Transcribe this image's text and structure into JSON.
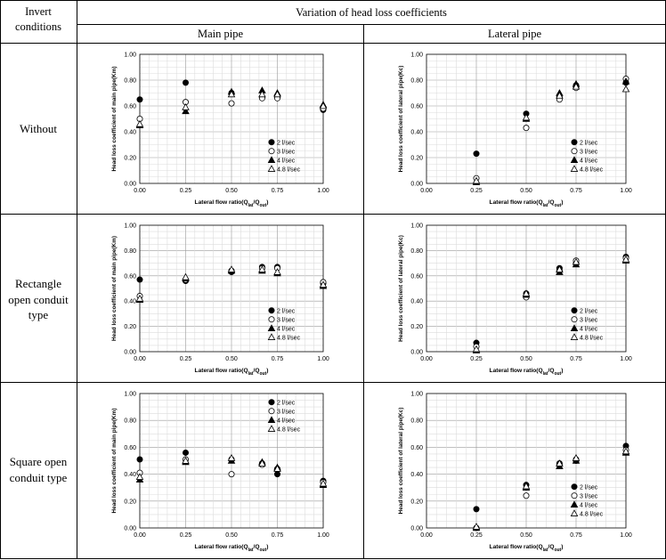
{
  "header": {
    "invert_line1": "Invert",
    "invert_line2": "conditions",
    "variation": "Variation of head loss coefficients",
    "main_pipe": "Main pipe",
    "lateral_pipe": "Lateral pipe"
  },
  "rows": [
    {
      "label_lines": [
        "Without"
      ]
    },
    {
      "label_lines": [
        "Rectangle",
        "open conduit",
        "type"
      ]
    },
    {
      "label_lines": [
        "Square open",
        "conduit type"
      ]
    }
  ],
  "chart_data": [
    {
      "type": "scatter",
      "id": "without-main",
      "ylabel": "Head loss coefficient of main pipe(Km)",
      "xlabel": "Lateral flow ratio(Qlat/Qout)",
      "xlim": [
        0,
        1
      ],
      "ylim": [
        0,
        1
      ],
      "xticks": [
        "0.00",
        "0.25",
        "0.50",
        "0.75",
        "1.00"
      ],
      "yticks": [
        "0.00",
        "0.20",
        "0.40",
        "0.60",
        "0.80",
        "1.00"
      ],
      "grid": true,
      "legend": "bottom-right",
      "series": [
        {
          "name": "2 l/sec",
          "marker": "filled-circle",
          "points": [
            [
              0,
              0.65
            ],
            [
              0.25,
              0.78
            ],
            [
              0.5,
              0.7
            ],
            [
              0.667,
              0.67
            ],
            [
              0.75,
              0.67
            ],
            [
              1.0,
              0.57
            ]
          ]
        },
        {
          "name": "3 l/sec",
          "marker": "open-circle",
          "points": [
            [
              0,
              0.5
            ],
            [
              0.25,
              0.63
            ],
            [
              0.5,
              0.62
            ],
            [
              0.667,
              0.66
            ],
            [
              0.75,
              0.66
            ],
            [
              1.0,
              0.58
            ]
          ]
        },
        {
          "name": "4 l/sec",
          "marker": "filled-triangle",
          "points": [
            [
              0,
              0.45
            ],
            [
              0.25,
              0.56
            ],
            [
              0.5,
              0.71
            ],
            [
              0.667,
              0.72
            ],
            [
              0.75,
              0.7
            ],
            [
              1.0,
              0.61
            ]
          ]
        },
        {
          "name": "4.8 l/sec",
          "marker": "open-triangle",
          "points": [
            [
              0,
              0.46
            ],
            [
              0.25,
              0.59
            ],
            [
              0.5,
              0.69
            ],
            [
              0.667,
              0.69
            ],
            [
              0.75,
              0.69
            ],
            [
              1.0,
              0.6
            ]
          ]
        }
      ]
    },
    {
      "type": "scatter",
      "id": "without-lateral",
      "ylabel": "Head loss coefficient of lateral pipe(Kc)",
      "xlabel": "Lateral flow ratio(Qlat/Qout)",
      "xlim": [
        0,
        1
      ],
      "ylim": [
        0,
        1
      ],
      "xticks": [
        "0.00",
        "0.25",
        "0.50",
        "0.75",
        "1.00"
      ],
      "yticks": [
        "0.00",
        "0.20",
        "0.40",
        "0.60",
        "0.80",
        "1.00"
      ],
      "grid": true,
      "legend": "bottom-right",
      "series": [
        {
          "name": "2 l/sec",
          "marker": "filled-circle",
          "points": [
            [
              0.25,
              0.23
            ],
            [
              0.5,
              0.54
            ],
            [
              0.667,
              0.67
            ],
            [
              0.75,
              0.76
            ],
            [
              1.0,
              0.78
            ]
          ]
        },
        {
          "name": "3 l/sec",
          "marker": "open-circle",
          "points": [
            [
              0.25,
              0.04
            ],
            [
              0.5,
              0.43
            ],
            [
              0.667,
              0.65
            ],
            [
              0.75,
              0.74
            ],
            [
              1.0,
              0.81
            ]
          ]
        },
        {
          "name": "4 l/sec",
          "marker": "filled-triangle",
          "points": [
            [
              0.25,
              0.01
            ],
            [
              0.5,
              0.5
            ],
            [
              0.667,
              0.7
            ],
            [
              0.75,
              0.77
            ],
            [
              1.0,
              0.79
            ]
          ]
        },
        {
          "name": "4.8 l/sec",
          "marker": "open-triangle",
          "points": [
            [
              0.25,
              0.02
            ],
            [
              0.5,
              0.51
            ],
            [
              0.667,
              0.68
            ],
            [
              0.75,
              0.75
            ],
            [
              1.0,
              0.73
            ]
          ]
        }
      ]
    },
    {
      "type": "scatter",
      "id": "rectangle-main",
      "ylabel": "Head loss coefficient of main pipe(Km)",
      "xlabel": "Lateral flow ratio(Qlat/Qout)",
      "xlim": [
        0,
        1
      ],
      "ylim": [
        0,
        1
      ],
      "xticks": [
        "0.00",
        "0.25",
        "0.50",
        "0.75",
        "1.00"
      ],
      "yticks": [
        "0.00",
        "0.20",
        "0.40",
        "0.60",
        "0.80",
        "1.00"
      ],
      "grid": true,
      "legend": "bottom-right",
      "series": [
        {
          "name": "2 l/sec",
          "marker": "filled-circle",
          "points": [
            [
              0,
              0.57
            ],
            [
              0.25,
              0.56
            ],
            [
              0.5,
              0.63
            ],
            [
              0.667,
              0.67
            ],
            [
              0.75,
              0.67
            ],
            [
              1.0,
              0.54
            ]
          ]
        },
        {
          "name": "3 l/sec",
          "marker": "open-circle",
          "points": [
            [
              0,
              0.44
            ],
            [
              0.25,
              0.57
            ],
            [
              0.5,
              0.64
            ],
            [
              0.667,
              0.66
            ],
            [
              0.75,
              0.66
            ],
            [
              1.0,
              0.55
            ]
          ]
        },
        {
          "name": "4 l/sec",
          "marker": "filled-triangle",
          "points": [
            [
              0,
              0.41
            ],
            [
              0.25,
              0.58
            ],
            [
              0.5,
              0.64
            ],
            [
              0.667,
              0.64
            ],
            [
              0.75,
              0.62
            ],
            [
              1.0,
              0.52
            ]
          ]
        },
        {
          "name": "4.8 l/sec",
          "marker": "open-triangle",
          "points": [
            [
              0,
              0.42
            ],
            [
              0.25,
              0.59
            ],
            [
              0.5,
              0.65
            ],
            [
              0.667,
              0.65
            ],
            [
              0.75,
              0.63
            ],
            [
              1.0,
              0.53
            ]
          ]
        }
      ]
    },
    {
      "type": "scatter",
      "id": "rectangle-lateral",
      "ylabel": "Head loss coefficient of lateral pipe(Kc)",
      "xlabel": "Lateral flow ratio(Qlat/Qout)",
      "xlim": [
        0,
        1
      ],
      "ylim": [
        0,
        1
      ],
      "xticks": [
        "0.00",
        "0.25",
        "0.50",
        "0.75",
        "1.00"
      ],
      "yticks": [
        "0.00",
        "0.20",
        "0.40",
        "0.60",
        "0.80",
        "1.00"
      ],
      "grid": true,
      "legend": "bottom-right",
      "series": [
        {
          "name": "2 l/sec",
          "marker": "filled-circle",
          "points": [
            [
              0.25,
              0.07
            ],
            [
              0.5,
              0.46
            ],
            [
              0.667,
              0.66
            ],
            [
              0.75,
              0.7
            ],
            [
              1.0,
              0.75
            ]
          ]
        },
        {
          "name": "3 l/sec",
          "marker": "open-circle",
          "points": [
            [
              0.25,
              0.04
            ],
            [
              0.5,
              0.43
            ],
            [
              0.667,
              0.64
            ],
            [
              0.75,
              0.72
            ],
            [
              1.0,
              0.74
            ]
          ]
        },
        {
          "name": "4 l/sec",
          "marker": "filled-triangle",
          "points": [
            [
              0.25,
              0.01
            ],
            [
              0.5,
              0.45
            ],
            [
              0.667,
              0.63
            ],
            [
              0.75,
              0.69
            ],
            [
              1.0,
              0.72
            ]
          ]
        },
        {
          "name": "4.8 l/sec",
          "marker": "open-triangle",
          "points": [
            [
              0.25,
              0.02
            ],
            [
              0.5,
              0.46
            ],
            [
              0.667,
              0.65
            ],
            [
              0.75,
              0.71
            ],
            [
              1.0,
              0.73
            ]
          ]
        }
      ]
    },
    {
      "type": "scatter",
      "id": "square-main",
      "ylabel": "Head loss coefficient of main pipe(Km)",
      "xlabel": "Lateral flow ratio(Qlat/Qout)",
      "xlim": [
        0,
        1
      ],
      "ylim": [
        0,
        1
      ],
      "xticks": [
        "0.00",
        "0.25",
        "0.50",
        "0.75",
        "1.00"
      ],
      "yticks": [
        "0.00",
        "0.20",
        "0.40",
        "0.60",
        "0.80",
        "1.00"
      ],
      "grid": true,
      "legend": "top-right",
      "series": [
        {
          "name": "2 l/sec",
          "marker": "filled-circle",
          "points": [
            [
              0,
              0.51
            ],
            [
              0.25,
              0.56
            ],
            [
              0.5,
              0.51
            ],
            [
              0.667,
              0.48
            ],
            [
              0.75,
              0.4
            ],
            [
              1.0,
              0.35
            ]
          ]
        },
        {
          "name": "3 l/sec",
          "marker": "open-circle",
          "points": [
            [
              0,
              0.41
            ],
            [
              0.25,
              0.51
            ],
            [
              0.5,
              0.4
            ],
            [
              0.667,
              0.47
            ],
            [
              0.75,
              0.44
            ],
            [
              1.0,
              0.34
            ]
          ]
        },
        {
          "name": "4 l/sec",
          "marker": "filled-triangle",
          "points": [
            [
              0,
              0.36
            ],
            [
              0.25,
              0.49
            ],
            [
              0.5,
              0.5
            ],
            [
              0.667,
              0.49
            ],
            [
              0.75,
              0.45
            ],
            [
              1.0,
              0.32
            ]
          ]
        },
        {
          "name": "4.8 l/sec",
          "marker": "open-triangle",
          "points": [
            [
              0,
              0.38
            ],
            [
              0.25,
              0.5
            ],
            [
              0.5,
              0.52
            ],
            [
              0.667,
              0.48
            ],
            [
              0.75,
              0.44
            ],
            [
              1.0,
              0.33
            ]
          ]
        }
      ]
    },
    {
      "type": "scatter",
      "id": "square-lateral",
      "ylabel": "Head loss coefficient of lateral pipe(Kc)",
      "xlabel": "Lateral flow ratio(Qlat/Qout)",
      "xlim": [
        0,
        1
      ],
      "ylim": [
        0,
        1
      ],
      "xticks": [
        "0.00",
        "0.25",
        "0.50",
        "0.75",
        "1.00"
      ],
      "yticks": [
        "0.00",
        "0.20",
        "0.40",
        "0.60",
        "0.80",
        "1.00"
      ],
      "grid": true,
      "legend": "bottom-right",
      "series": [
        {
          "name": "2 l/sec",
          "marker": "filled-circle",
          "points": [
            [
              0.25,
              0.14
            ],
            [
              0.5,
              0.32
            ],
            [
              0.667,
              0.48
            ],
            [
              0.75,
              0.51
            ],
            [
              1.0,
              0.61
            ]
          ]
        },
        {
          "name": "3 l/sec",
          "marker": "open-circle",
          "points": [
            [
              0.25,
              0.0
            ],
            [
              0.5,
              0.24
            ],
            [
              0.667,
              0.47
            ],
            [
              0.75,
              0.5
            ],
            [
              1.0,
              0.58
            ]
          ]
        },
        {
          "name": "4 l/sec",
          "marker": "filled-triangle",
          "points": [
            [
              0.25,
              0.0
            ],
            [
              0.5,
              0.3
            ],
            [
              0.667,
              0.46
            ],
            [
              0.75,
              0.5
            ],
            [
              1.0,
              0.56
            ]
          ]
        },
        {
          "name": "4.8 l/sec",
          "marker": "open-triangle",
          "points": [
            [
              0.25,
              0.01
            ],
            [
              0.5,
              0.31
            ],
            [
              0.667,
              0.48
            ],
            [
              0.75,
              0.52
            ],
            [
              1.0,
              0.57
            ]
          ]
        }
      ]
    }
  ]
}
